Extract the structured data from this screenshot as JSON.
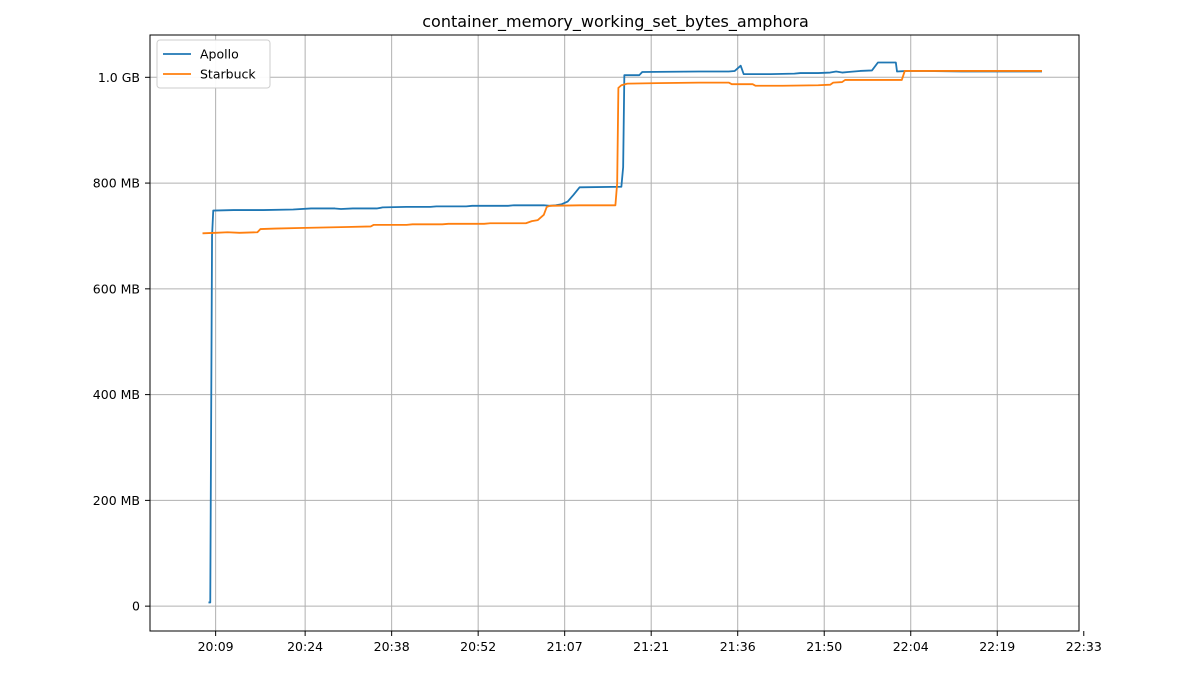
{
  "chart_data": {
    "type": "line",
    "title": "container_memory_working_set_bytes_amphora",
    "xlabel": "",
    "ylabel": "",
    "x_unit": "minutes since 20:00",
    "xlim": [
      -2,
      153.7
    ],
    "ylim": [
      -47,
      1080
    ],
    "x_ticks": [
      {
        "label": "20:09",
        "value": 9
      },
      {
        "label": "20:24",
        "value": 24
      },
      {
        "label": "20:38",
        "value": 38.5
      },
      {
        "label": "20:52",
        "value": 53
      },
      {
        "label": "21:07",
        "value": 67.5
      },
      {
        "label": "21:21",
        "value": 82
      },
      {
        "label": "21:36",
        "value": 96.5
      },
      {
        "label": "21:50",
        "value": 111
      },
      {
        "label": "22:04",
        "value": 125.5
      },
      {
        "label": "22:19",
        "value": 140
      },
      {
        "label": "22:33",
        "value": 154.5
      }
    ],
    "y_ticks": [
      {
        "label": "0",
        "value": 0
      },
      {
        "label": "200 MB",
        "value": 200
      },
      {
        "label": "400 MB",
        "value": 400
      },
      {
        "label": "600 MB",
        "value": 600
      },
      {
        "label": "800 MB",
        "value": 800
      },
      {
        "label": "1.0 GB",
        "value": 1000
      }
    ],
    "grid": true,
    "legend": "top-left",
    "series": [
      {
        "name": "Apollo",
        "color": "#1f77b4",
        "points": [
          [
            7.8,
            7
          ],
          [
            8.1,
            7
          ],
          [
            8.4,
            700
          ],
          [
            8.6,
            748
          ],
          [
            12,
            749
          ],
          [
            17,
            749
          ],
          [
            22,
            750
          ],
          [
            25,
            752
          ],
          [
            29,
            752
          ],
          [
            30,
            751
          ],
          [
            32,
            752
          ],
          [
            36,
            752
          ],
          [
            37,
            754
          ],
          [
            41,
            755
          ],
          [
            45,
            755
          ],
          [
            46,
            756
          ],
          [
            51,
            756
          ],
          [
            52,
            757
          ],
          [
            58,
            757
          ],
          [
            59,
            758
          ],
          [
            64,
            758
          ],
          [
            65,
            757
          ],
          [
            66,
            758
          ],
          [
            67,
            760
          ],
          [
            68,
            765
          ],
          [
            69,
            778
          ],
          [
            70,
            792
          ],
          [
            77,
            793
          ],
          [
            77.3,
            830
          ],
          [
            77.5,
            1004
          ],
          [
            80,
            1004
          ],
          [
            80.5,
            1010
          ],
          [
            90,
            1011
          ],
          [
            95,
            1011
          ],
          [
            96,
            1012
          ],
          [
            97,
            1022
          ],
          [
            97.5,
            1006
          ],
          [
            102,
            1006
          ],
          [
            106,
            1007
          ],
          [
            107,
            1008
          ],
          [
            110,
            1008
          ],
          [
            112,
            1009
          ],
          [
            113,
            1011
          ],
          [
            114,
            1009
          ],
          [
            115,
            1010
          ],
          [
            117,
            1012
          ],
          [
            119,
            1013
          ],
          [
            120,
            1028
          ],
          [
            123,
            1028
          ],
          [
            123.2,
            1011
          ],
          [
            125,
            1012
          ],
          [
            128,
            1012
          ],
          [
            134,
            1011
          ],
          [
            147.5,
            1011
          ]
        ]
      },
      {
        "name": "Starbuck",
        "color": "#ff7f0e",
        "points": [
          [
            6.8,
            705
          ],
          [
            9,
            706
          ],
          [
            11,
            707
          ],
          [
            13,
            706
          ],
          [
            16,
            707
          ],
          [
            16.5,
            713
          ],
          [
            19,
            714
          ],
          [
            23,
            715
          ],
          [
            27,
            716
          ],
          [
            31,
            717
          ],
          [
            35,
            718
          ],
          [
            35.5,
            721
          ],
          [
            41,
            721
          ],
          [
            42,
            722
          ],
          [
            47,
            722
          ],
          [
            48,
            723
          ],
          [
            54,
            723
          ],
          [
            55,
            724
          ],
          [
            61,
            724
          ],
          [
            62,
            728
          ],
          [
            63,
            730
          ],
          [
            64,
            740
          ],
          [
            64.5,
            755
          ],
          [
            65,
            757
          ],
          [
            70,
            758
          ],
          [
            76,
            758
          ],
          [
            76.3,
            800
          ],
          [
            76.5,
            980
          ],
          [
            77,
            985
          ],
          [
            78,
            988
          ],
          [
            83,
            989
          ],
          [
            90,
            990
          ],
          [
            95,
            990
          ],
          [
            95.5,
            987
          ],
          [
            99,
            987
          ],
          [
            99.5,
            984
          ],
          [
            104,
            984
          ],
          [
            110,
            985
          ],
          [
            112,
            986
          ],
          [
            112.5,
            990
          ],
          [
            114,
            991
          ],
          [
            114.5,
            995
          ],
          [
            120,
            995
          ],
          [
            124,
            995
          ],
          [
            124.5,
            1012
          ],
          [
            135,
            1012
          ],
          [
            147.5,
            1012
          ]
        ]
      }
    ]
  }
}
